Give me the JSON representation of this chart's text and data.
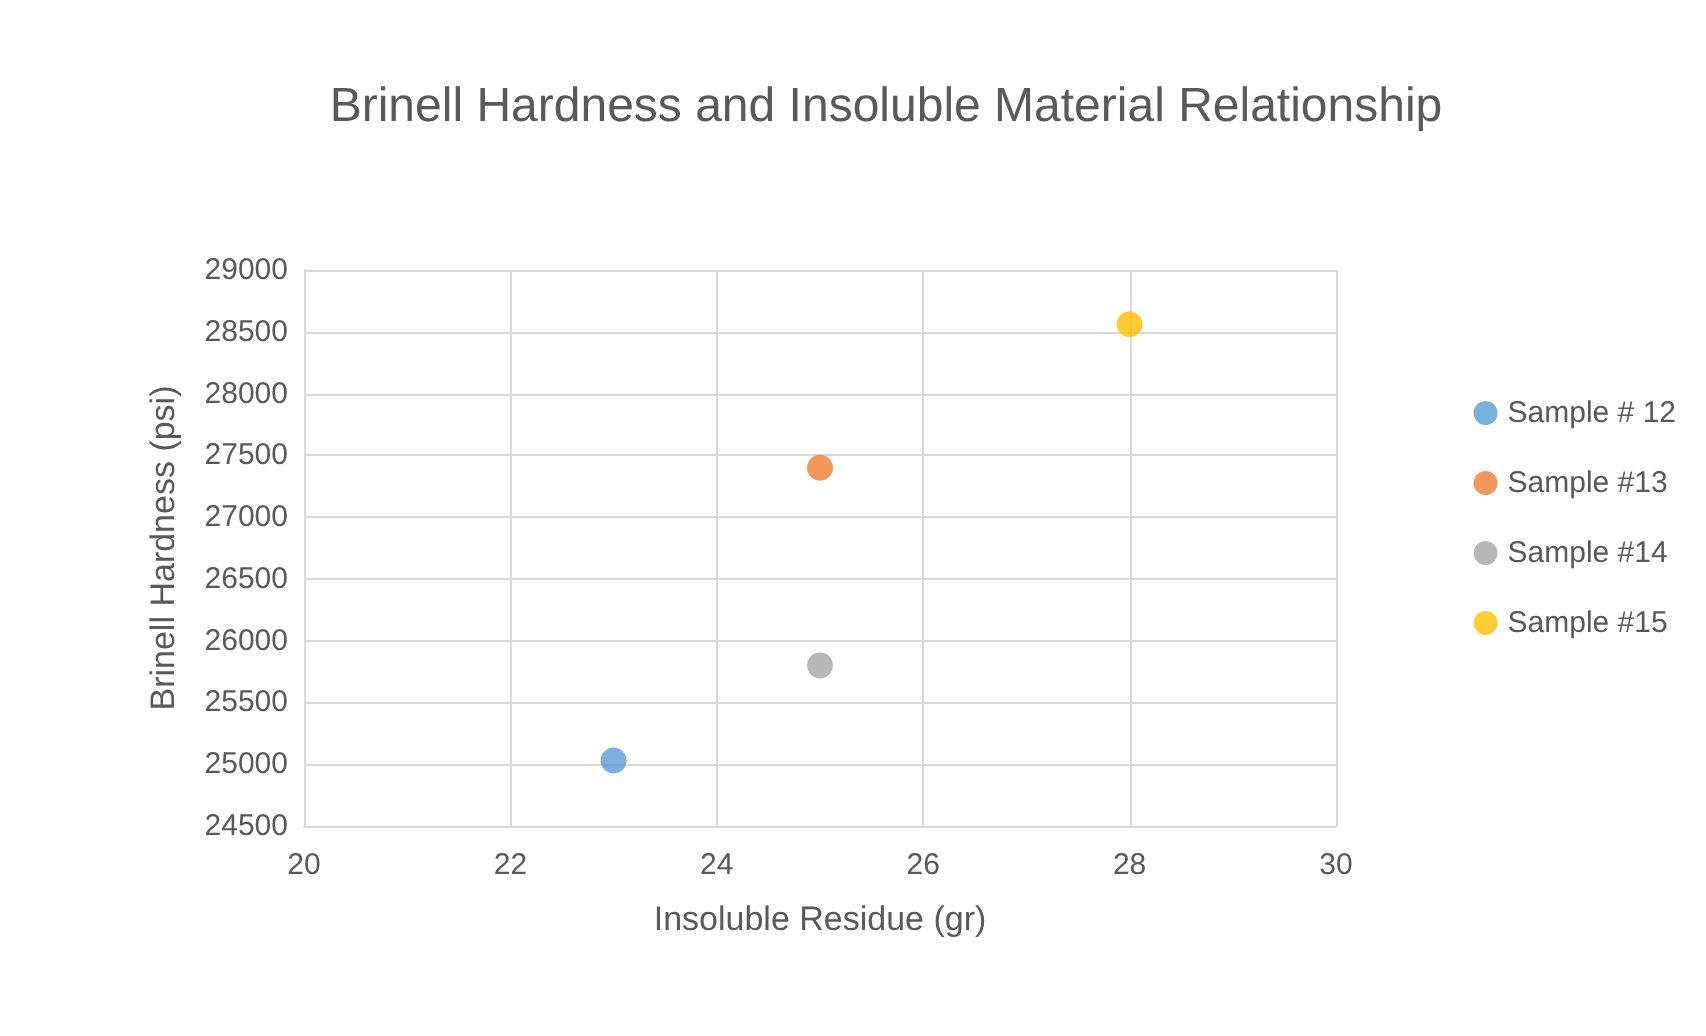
{
  "chart_data": {
    "type": "scatter",
    "title": "Brinell Hardness and Insoluble Material Relationship",
    "xlabel": "Insoluble Residue (gr)",
    "ylabel": "Brinell Hardness (psi)",
    "series": [
      {
        "name": "Sample # 12",
        "color": "#5b9bd5",
        "x": [
          23
        ],
        "values": [
          25030
        ]
      },
      {
        "name": "Sample #13",
        "color": "#ed7d31",
        "x": [
          25
        ],
        "values": [
          27400
        ]
      },
      {
        "name": "Sample #14",
        "color": "#a5a5a5",
        "x": [
          25
        ],
        "values": [
          25800
        ]
      },
      {
        "name": "Sample #15",
        "color": "#ffc000",
        "x": [
          28
        ],
        "values": [
          28560
        ]
      }
    ],
    "xlim": [
      20,
      30
    ],
    "xticks": [
      20,
      22,
      24,
      26,
      28,
      30
    ],
    "ylim": [
      24500,
      29000
    ],
    "yticks": [
      24500,
      25000,
      25500,
      26000,
      26500,
      27000,
      27500,
      28000,
      28500,
      29000
    ],
    "grid": true,
    "legend": "right",
    "marker": "circle"
  }
}
